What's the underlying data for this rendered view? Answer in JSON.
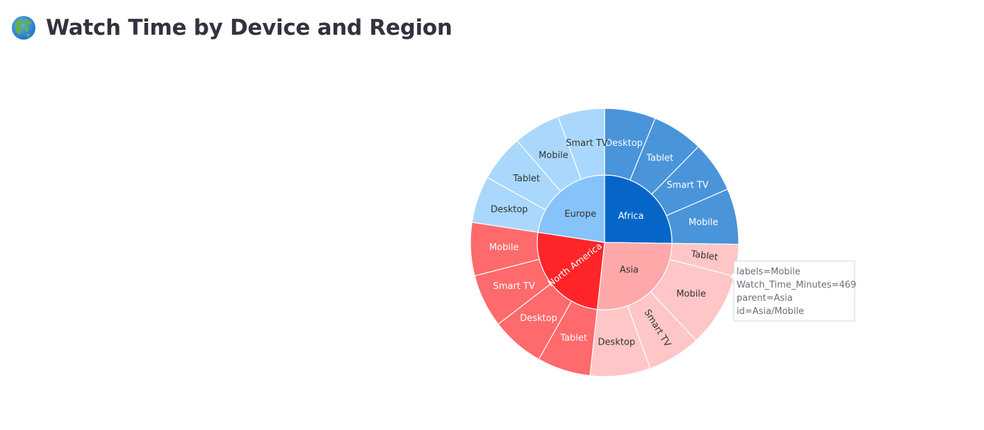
{
  "header": {
    "title": "Watch Time by Device and Region",
    "icon": "globe-icon"
  },
  "chart_data": {
    "type": "sunburst",
    "title": "",
    "root": [
      {
        "name": "Africa",
        "color": "#0566c8",
        "text_color": "#ffffff",
        "children": [
          {
            "name": "Desktop",
            "value": 322,
            "color": "#4a94da",
            "text_color": "#ffffff"
          },
          {
            "name": "Tablet",
            "value": 322,
            "color": "#4a94da",
            "text_color": "#ffffff"
          },
          {
            "name": "Smart TV",
            "value": 322,
            "color": "#4a94da",
            "text_color": "#ffffff"
          },
          {
            "name": "Mobile",
            "value": 351,
            "color": "#4a94da",
            "text_color": "#ffffff"
          }
        ]
      },
      {
        "name": "Asia",
        "color": "#ffa8aa",
        "text_color": "#333333",
        "children": [
          {
            "name": "Tablet",
            "value": 201,
            "color": "#ffc6c7",
            "text_color": "#333333"
          },
          {
            "name": "Mobile",
            "value": 469,
            "color": "#ffc6c7",
            "text_color": "#333333"
          },
          {
            "name": "Smart TV",
            "value": 335,
            "color": "#ffc6c7",
            "text_color": "#333333"
          },
          {
            "name": "Desktop",
            "value": 380,
            "color": "#ffc6c7",
            "text_color": "#333333"
          }
        ]
      },
      {
        "name": "North America",
        "color": "#ff2529",
        "text_color": "#ffffff",
        "children": [
          {
            "name": "Tablet",
            "value": 335,
            "color": "#ff6a6c",
            "text_color": "#ffffff"
          },
          {
            "name": "Desktop",
            "value": 335,
            "color": "#ff6a6c",
            "text_color": "#ffffff"
          },
          {
            "name": "Smart TV",
            "value": 335,
            "color": "#ff6a6c",
            "text_color": "#ffffff"
          },
          {
            "name": "Mobile",
            "value": 335,
            "color": "#ff6a6c",
            "text_color": "#ffffff"
          }
        ]
      },
      {
        "name": "Europe",
        "color": "#86c3fb",
        "text_color": "#333333",
        "children": [
          {
            "name": "Desktop",
            "value": 295,
            "color": "#aad8fd",
            "text_color": "#333333"
          },
          {
            "name": "Tablet",
            "value": 295,
            "color": "#aad8fd",
            "text_color": "#333333"
          },
          {
            "name": "Mobile",
            "value": 295,
            "color": "#aad8fd",
            "text_color": "#333333"
          },
          {
            "name": "Smart TV",
            "value": 295,
            "color": "#aad8fd",
            "text_color": "#333333"
          }
        ]
      }
    ],
    "tooltip": {
      "lines": [
        "labels=Mobile",
        "Watch_Time_Minutes=469",
        "parent=Asia",
        "id=Asia/Mobile"
      ]
    }
  }
}
